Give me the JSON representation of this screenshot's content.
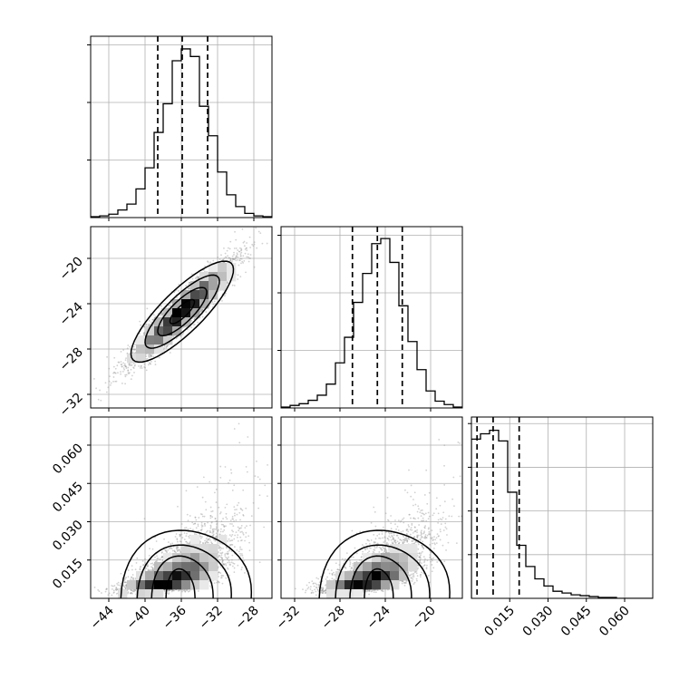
{
  "chart_data": {
    "type": "corner",
    "parameters": [
      "",
      "",
      ""
    ],
    "quantiles": [
      0.16,
      0.5,
      0.84
    ],
    "colors": {
      "line": "#000000",
      "grid": "#b0b0b0",
      "points": "#999999",
      "density_dark": "#000000",
      "density_light": "#ffffff"
    },
    "grid": true,
    "axes": {
      "p1": {
        "range": [
          -46,
          -26
        ],
        "ticks": [
          -44,
          -40,
          -36,
          -32,
          -28
        ],
        "tick_labels": [
          "−44",
          "−40",
          "−36",
          "−32",
          "−28"
        ]
      },
      "p2": {
        "range": [
          -33.2,
          -17.2
        ],
        "ticks": [
          -32,
          -28,
          -24,
          -20
        ],
        "tick_labels": [
          "−32",
          "−28",
          "−24",
          "−20"
        ]
      },
      "p3": {
        "range": [
          0.0,
          0.071
        ],
        "ticks": [
          0.015,
          0.03,
          0.045,
          0.06
        ],
        "tick_labels": [
          "0.015",
          "0.030",
          "0.045",
          "0.060"
        ]
      }
    },
    "hist1": {
      "bin_start": -46,
      "bin_width": 1.0,
      "counts": [
        1,
        2,
        4,
        9,
        16,
        34,
        59,
        101,
        135,
        186,
        200,
        191,
        132,
        97,
        54,
        27,
        13,
        5,
        2,
        1
      ],
      "ylim": [
        0,
        215
      ],
      "quantile_lines": [
        -38.6,
        -35.9,
        -33.1
      ]
    },
    "hist2": {
      "bin_start": -33.2,
      "bin_width": 0.8,
      "counts": [
        1,
        3,
        5,
        9,
        15,
        28,
        53,
        83,
        124,
        158,
        193,
        199,
        171,
        120,
        78,
        45,
        20,
        8,
        4,
        1
      ],
      "ylim": [
        0,
        213
      ],
      "quantile_lines": [
        -26.9,
        -24.7,
        -22.5
      ]
    },
    "hist3": {
      "bin_start": 0.0,
      "bin_width": 0.00355,
      "counts": [
        180,
        186,
        190,
        178,
        120,
        60,
        36,
        22,
        14,
        8,
        6,
        4,
        3,
        2,
        1,
        1,
        0,
        0,
        0,
        0
      ],
      "ylim": [
        0,
        205
      ],
      "quantile_lines": [
        0.0022,
        0.0085,
        0.0187
      ]
    },
    "scatter_p1_p2": {
      "center": [
        -35.9,
        -24.7
      ],
      "sd": [
        2.8,
        2.2
      ],
      "corr": 0.93,
      "n_points": 4000,
      "contours": [
        "core",
        "inner",
        "middle",
        "outer"
      ]
    },
    "scatter_p1_p3": {
      "center": [
        -36.5,
        0.009
      ],
      "lognormal_sigma": 0.6,
      "median": 0.009,
      "n_points": 4000,
      "contours": [
        "core",
        "inner",
        "middle",
        "outer"
      ]
    },
    "scatter_p2_p3": {
      "center": [
        -24.9,
        0.009
      ],
      "lognormal_sigma": 0.6,
      "median": 0.009,
      "n_points": 4000,
      "contours": [
        "core",
        "inner",
        "middle",
        "outer"
      ]
    }
  }
}
